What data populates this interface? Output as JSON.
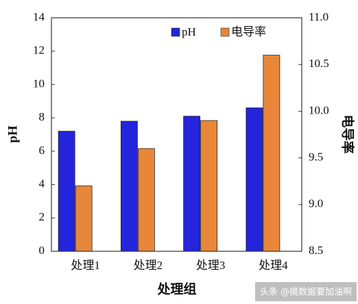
{
  "chart_data": {
    "type": "bar",
    "categories": [
      "处理1",
      "处理2",
      "处理3",
      "处理4"
    ],
    "series": [
      {
        "name": "pH",
        "color": "#2424dc",
        "values": [
          7.2,
          7.8,
          8.1,
          8.6
        ]
      },
      {
        "name": "电导率",
        "color": "#e8873a",
        "values": [
          9.2,
          9.6,
          9.9,
          10.6
        ],
        "axis": "y2"
      }
    ],
    "ylim": [
      0,
      14
    ],
    "yticks": [
      0,
      2,
      4,
      6,
      8,
      10,
      12,
      14
    ],
    "y2lim": [
      8.5,
      11.0
    ],
    "y2ticks": [
      8.5,
      {
        "value": 9,
        "label": "9.0"
      },
      9.5,
      {
        "value": 10,
        "label": "10.0"
      },
      10.5,
      {
        "value": 11,
        "label": "11.0"
      }
    ],
    "ylabel": "pH",
    "y2label": "电导率",
    "xlabel": "处理组",
    "legend": "top-right",
    "watermark": "头条 @搞数据要加油啊"
  }
}
